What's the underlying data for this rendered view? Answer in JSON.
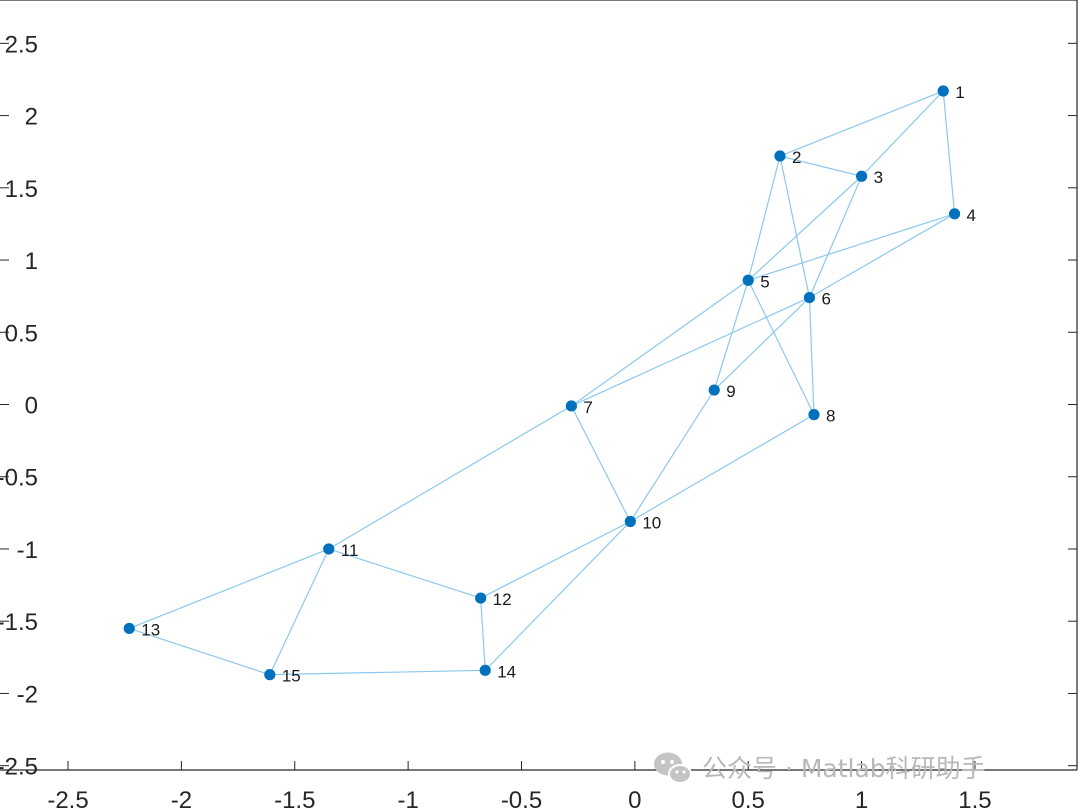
{
  "chart_data": {
    "type": "graph",
    "xlim": [
      -2.8,
      1.95
    ],
    "ylim": [
      -2.53,
      2.8
    ],
    "x_ticks": [
      {
        "value": -2.5,
        "label": "-2.5"
      },
      {
        "value": -2,
        "label": "-2"
      },
      {
        "value": -1.5,
        "label": "-1.5"
      },
      {
        "value": -1,
        "label": "-1"
      },
      {
        "value": -0.5,
        "label": "-0.5"
      },
      {
        "value": 0,
        "label": "0"
      },
      {
        "value": 0.5,
        "label": "0.5"
      },
      {
        "value": 1,
        "label": "1"
      },
      {
        "value": 1.5,
        "label": "1.5"
      }
    ],
    "y_ticks": [
      {
        "value": 2.5,
        "label": "2.5"
      },
      {
        "value": 2,
        "label": "2"
      },
      {
        "value": 1.5,
        "label": "1.5"
      },
      {
        "value": 1,
        "label": "1"
      },
      {
        "value": 0.5,
        "label": "0.5"
      },
      {
        "value": 0,
        "label": "0"
      },
      {
        "value": -0.5,
        "label": "-0.5"
      },
      {
        "value": -1,
        "label": "-1"
      },
      {
        "value": -1.5,
        "label": "-1.5"
      },
      {
        "value": -2,
        "label": "-2"
      },
      {
        "value": -2.5,
        "label": "-2.5"
      }
    ],
    "nodes": [
      {
        "id": "1",
        "x": 1.36,
        "y": 2.17
      },
      {
        "id": "2",
        "x": 0.64,
        "y": 1.72
      },
      {
        "id": "3",
        "x": 1.0,
        "y": 1.58
      },
      {
        "id": "4",
        "x": 1.41,
        "y": 1.32
      },
      {
        "id": "5",
        "x": 0.5,
        "y": 0.86
      },
      {
        "id": "6",
        "x": 0.77,
        "y": 0.74
      },
      {
        "id": "7",
        "x": -0.28,
        "y": -0.01
      },
      {
        "id": "8",
        "x": 0.79,
        "y": -0.07
      },
      {
        "id": "9",
        "x": 0.35,
        "y": 0.1
      },
      {
        "id": "10",
        "x": -0.02,
        "y": -0.81
      },
      {
        "id": "11",
        "x": -1.35,
        "y": -1.0
      },
      {
        "id": "12",
        "x": -0.68,
        "y": -1.34
      },
      {
        "id": "13",
        "x": -2.23,
        "y": -1.55
      },
      {
        "id": "14",
        "x": -0.66,
        "y": -1.84
      },
      {
        "id": "15",
        "x": -1.61,
        "y": -1.87
      }
    ],
    "edges": [
      [
        "1",
        "2"
      ],
      [
        "1",
        "3"
      ],
      [
        "1",
        "4"
      ],
      [
        "2",
        "3"
      ],
      [
        "2",
        "5"
      ],
      [
        "2",
        "6"
      ],
      [
        "3",
        "5"
      ],
      [
        "3",
        "6"
      ],
      [
        "4",
        "5"
      ],
      [
        "4",
        "6"
      ],
      [
        "5",
        "7"
      ],
      [
        "5",
        "8"
      ],
      [
        "5",
        "9"
      ],
      [
        "6",
        "7"
      ],
      [
        "6",
        "8"
      ],
      [
        "6",
        "9"
      ],
      [
        "7",
        "10"
      ],
      [
        "7",
        "11"
      ],
      [
        "8",
        "10"
      ],
      [
        "9",
        "10"
      ],
      [
        "10",
        "12"
      ],
      [
        "10",
        "14"
      ],
      [
        "11",
        "12"
      ],
      [
        "11",
        "13"
      ],
      [
        "11",
        "15"
      ],
      [
        "12",
        "14"
      ],
      [
        "13",
        "15"
      ],
      [
        "14",
        "15"
      ]
    ]
  },
  "watermark": {
    "text": "公众号 · Matlab科研助手",
    "icon": "wechat-icon"
  },
  "colors": {
    "node": "#0072bd",
    "edge": "#8cc8ec",
    "axis": "#262626"
  }
}
